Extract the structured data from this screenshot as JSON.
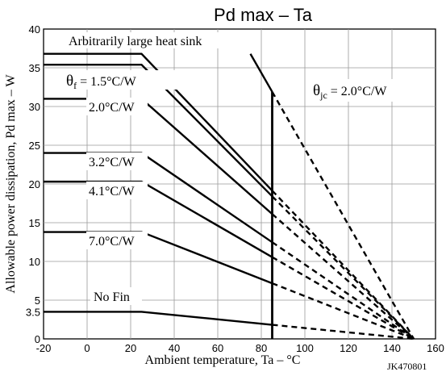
{
  "chart_data": {
    "type": "line",
    "title": "Pd max – Ta",
    "xlabel": "Ambient temperature, Ta – °C",
    "ylabel": "Allowable power dissipation, Pd max – W",
    "figure_id": "JK470801",
    "xlim": [
      -20,
      160
    ],
    "ylim": [
      0,
      40
    ],
    "grid": true,
    "x_ticks": [
      {
        "value": -20,
        "label": "-20"
      },
      {
        "value": 0,
        "label": "0"
      },
      {
        "value": 20,
        "label": "20"
      },
      {
        "value": 40,
        "label": "40"
      },
      {
        "value": 60,
        "label": "60"
      },
      {
        "value": 80,
        "label": "80"
      },
      {
        "value": 100,
        "label": "100"
      },
      {
        "value": 120,
        "label": "120"
      },
      {
        "value": 140,
        "label": "140"
      },
      {
        "value": 160,
        "label": "160"
      }
    ],
    "y_ticks": [
      {
        "value": 0,
        "label": "0"
      },
      {
        "value": 3.5,
        "label": "3.5"
      },
      {
        "value": 5,
        "label": "5"
      },
      {
        "value": 10,
        "label": "10"
      },
      {
        "value": 15,
        "label": "15"
      },
      {
        "value": 20,
        "label": "20"
      },
      {
        "value": 25,
        "label": "25"
      },
      {
        "value": 30,
        "label": "30"
      },
      {
        "value": 35,
        "label": "35"
      },
      {
        "value": 40,
        "label": "40"
      }
    ],
    "tj_max_x": 150,
    "case_limit_x": 85,
    "series": [
      {
        "name": "Arbitrarily large heat sink",
        "flat_value": 36.8,
        "knee_x": 25
      },
      {
        "name": "θf = 1.5°C/W",
        "flat_value": 35.4,
        "knee_x": 25
      },
      {
        "name": "2.0°C/W",
        "flat_value": 31.0,
        "knee_x": 25
      },
      {
        "name": "3.2°C/W",
        "flat_value": 24.0,
        "knee_x": 25
      },
      {
        "name": "4.1°C/W",
        "flat_value": 20.3,
        "knee_x": 25
      },
      {
        "name": "7.0°C/W",
        "flat_value": 13.8,
        "knee_x": 25
      },
      {
        "name": "No Fin",
        "flat_value": 3.5,
        "knee_x": 25
      }
    ],
    "jc_line": {
      "label": "θjc = 2.0°C/W",
      "flat_value": 36.8,
      "knee_x": 75
    },
    "annotations": {
      "sink_label": "Arbitrarily large heat sink",
      "theta": "θ",
      "theta_f_sub": "f",
      "theta_f_rest": " = 1.5°C/W",
      "theta_jc_sub": "jc",
      "theta_jc_rest": " = 2.0°C/W",
      "label_2_0": "2.0°C/W",
      "label_3_2": "3.2°C/W",
      "label_4_1": "4.1°C/W",
      "label_7_0": "7.0°C/W",
      "label_nofin": "No Fin"
    }
  }
}
